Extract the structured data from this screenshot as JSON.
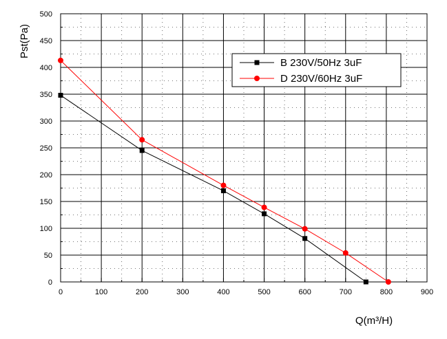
{
  "chart_data": {
    "type": "line",
    "xlabel": "Q(m³/H)",
    "ylabel": "Pst(Pa)",
    "xlim": [
      0,
      900
    ],
    "ylim": [
      0,
      500
    ],
    "xticks": [
      0,
      100,
      200,
      300,
      400,
      500,
      600,
      700,
      800,
      900
    ],
    "yticks": [
      0,
      50,
      100,
      150,
      200,
      250,
      300,
      350,
      400,
      450,
      500
    ],
    "grid": true,
    "minor_grid": true,
    "legend_position": "top-right",
    "series": [
      {
        "name": "B 230V/50Hz 3uF",
        "color": "#000000",
        "marker": "square",
        "x": [
          0,
          200,
          400,
          500,
          600,
          750
        ],
        "y": [
          348,
          245,
          170,
          127,
          81,
          0
        ]
      },
      {
        "name": "D 230V/60Hz 3uF",
        "color": "#ff0000",
        "marker": "circle",
        "x": [
          0,
          200,
          400,
          500,
          600,
          700,
          805
        ],
        "y": [
          413,
          265,
          180,
          139,
          99,
          54,
          0
        ]
      }
    ]
  }
}
